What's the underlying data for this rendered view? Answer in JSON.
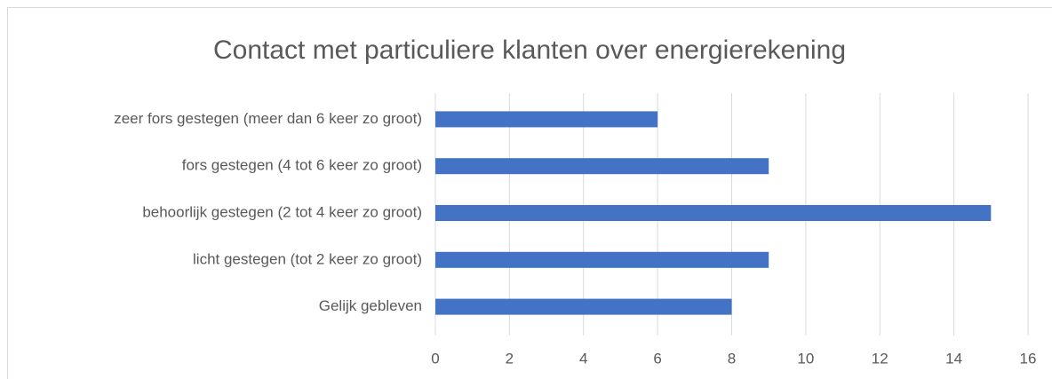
{
  "chart_data": {
    "type": "bar",
    "orientation": "horizontal",
    "title": "Contact met particuliere klanten over energierekening",
    "categories": [
      "zeer fors gestegen (meer dan 6 keer zo groot)",
      "fors gestegen (4 tot 6 keer zo groot)",
      "behoorlijk gestegen (2 tot 4 keer zo groot)",
      "licht gestegen (tot 2 keer zo groot)",
      "Gelijk gebleven"
    ],
    "values": [
      6,
      9,
      15,
      9,
      8
    ],
    "color": "#4472c4",
    "xlim": [
      0,
      16
    ],
    "xticks": [
      0,
      2,
      4,
      6,
      8,
      10,
      12,
      14,
      16
    ],
    "grid": true
  }
}
